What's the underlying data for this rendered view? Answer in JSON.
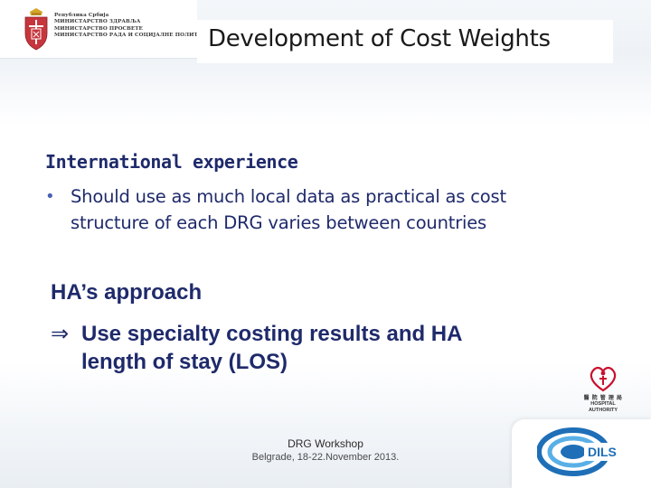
{
  "header": {
    "ministry_lines": [
      "Република Србија",
      "МИНИСТАРСТВО ЗДРАВЉА",
      "МИНИСТАРСТВО ПРОСВЕТЕ",
      "МИНИСТАРСТВО РАДА И СОЦИЈАЛНЕ ПОЛИТИКЕ"
    ],
    "title": "Development of Cost Weights"
  },
  "content": {
    "section_heading": "International experience",
    "bullet_marker": "•",
    "bullets": [
      "Should use as much local data as practical as cost structure of each DRG varies between countries"
    ],
    "approach_heading": "HA’s approach",
    "approach_arrow": "⇒",
    "approach_item": "Use specialty costing results and HA length of stay (LOS)"
  },
  "footer": {
    "event": "DRG Workshop",
    "date": "Belgrade, 18-22.November 2013."
  },
  "logos": {
    "ha": {
      "cjk": "醫 院 管 理 局",
      "line1": "HOSPITAL",
      "line2": "AUTHORITY"
    },
    "dils": {
      "text": "DILS"
    }
  },
  "colors": {
    "heading_blue": "#1f2a6b",
    "bullet_blue": "#4a5fb3",
    "dils_blue": "#1e6fb7",
    "ha_red": "#c8102e",
    "coat_red": "#c6363c"
  }
}
